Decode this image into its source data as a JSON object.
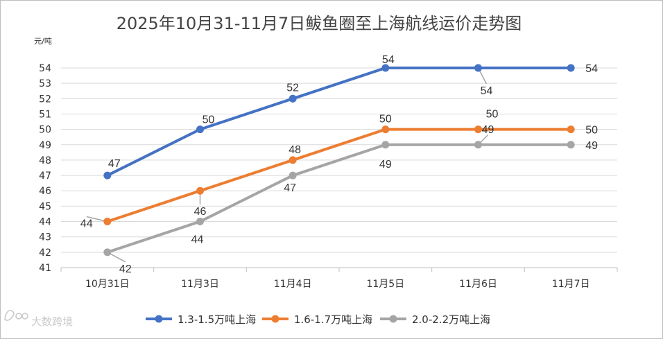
{
  "chart_data": {
    "type": "line",
    "title": "2025年10月31-11月7日鲅鱼圈至上海航线运价走势图",
    "ylabel": "元/吨",
    "xlabel": "",
    "categories": [
      "10月31日",
      "11月3日",
      "11月4日",
      "11月5日",
      "11月6日",
      "11月7日"
    ],
    "ylim": [
      41,
      54
    ],
    "yticks": [
      41,
      42,
      43,
      44,
      45,
      46,
      47,
      48,
      49,
      50,
      51,
      52,
      53,
      54
    ],
    "grid": true,
    "legend_position": "bottom",
    "series": [
      {
        "name": "1.3-1.5万吨上海",
        "color": "#4472c4",
        "values": [
          47,
          50,
          52,
          54,
          54,
          54
        ]
      },
      {
        "name": "1.6-1.7万吨上海",
        "color": "#ed7d31",
        "values": [
          44,
          46,
          48,
          50,
          50,
          50
        ]
      },
      {
        "name": "2.0-2.2万吨上海",
        "color": "#a5a5a5",
        "values": [
          42,
          44,
          47,
          49,
          49,
          49
        ]
      }
    ]
  },
  "watermark": "大数跨境",
  "colors": {
    "grid": "#d9d9d9",
    "axis": "#bfbfbf",
    "text": "#333333",
    "leader": "#a6a6a6",
    "frame": "#bfbfbf"
  }
}
